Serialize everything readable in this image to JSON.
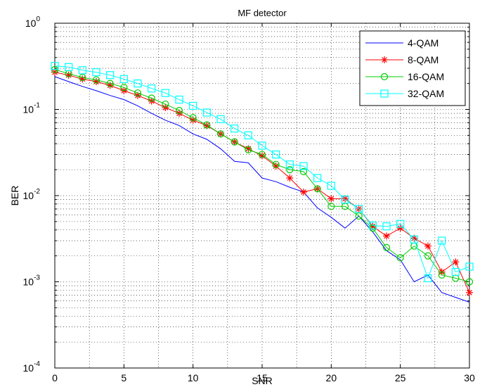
{
  "chart_data": {
    "type": "line",
    "title": "MF detector",
    "xlabel": "SNR",
    "ylabel": "BER",
    "xlim": [
      0,
      30
    ],
    "ylim": [
      0.0001,
      1
    ],
    "yscale": "log",
    "grid": true,
    "legend_position": "top-right",
    "x_ticks": [
      "0",
      "5",
      "10",
      "15",
      "20",
      "25",
      "30"
    ],
    "y_ticks": [
      {
        "base": "10",
        "exp": "-4",
        "value": 0.0001
      },
      {
        "base": "10",
        "exp": "-3",
        "value": 0.001
      },
      {
        "base": "10",
        "exp": "-2",
        "value": 0.01
      },
      {
        "base": "10",
        "exp": "-1",
        "value": 0.1
      },
      {
        "base": "10",
        "exp": "0",
        "value": 1
      }
    ],
    "x": [
      0,
      1,
      2,
      3,
      4,
      5,
      6,
      7,
      8,
      9,
      10,
      11,
      12,
      13,
      14,
      15,
      16,
      17,
      18,
      19,
      20,
      21,
      22,
      23,
      24,
      25,
      26,
      27,
      28,
      29,
      30
    ],
    "series": [
      {
        "name": "4-QAM",
        "color": "#0000ff",
        "marker": "none",
        "values": [
          0.24,
          0.21,
          0.185,
          0.165,
          0.145,
          0.13,
          0.11,
          0.09,
          0.075,
          0.065,
          0.052,
          0.045,
          0.035,
          0.025,
          0.024,
          0.016,
          0.0145,
          0.0125,
          0.011,
          0.0072,
          0.0056,
          0.0042,
          0.0058,
          0.0038,
          0.0023,
          0.0018,
          0.001,
          0.0012,
          0.00075,
          0.00066,
          0.00058
        ]
      },
      {
        "name": "8-QAM",
        "color": "#ff0000",
        "marker": "star",
        "values": [
          0.27,
          0.25,
          0.225,
          0.21,
          0.19,
          0.165,
          0.145,
          0.125,
          0.105,
          0.09,
          0.075,
          0.065,
          0.052,
          0.042,
          0.035,
          0.029,
          0.022,
          0.016,
          0.011,
          0.012,
          0.0092,
          0.0092,
          0.007,
          0.0044,
          0.0034,
          0.0042,
          0.0032,
          0.0026,
          0.0013,
          0.0017,
          0.00075
        ]
      },
      {
        "name": "16-QAM",
        "color": "#00cc00",
        "marker": "circle",
        "values": [
          0.29,
          0.26,
          0.235,
          0.22,
          0.2,
          0.18,
          0.155,
          0.135,
          0.115,
          0.097,
          0.08,
          0.066,
          0.052,
          0.042,
          0.034,
          0.03,
          0.023,
          0.02,
          0.019,
          0.012,
          0.0075,
          0.0075,
          0.0058,
          0.0042,
          0.0025,
          0.0019,
          0.0026,
          0.002,
          0.0012,
          0.0011,
          0.001
        ]
      },
      {
        "name": "32-QAM",
        "color": "#00ffff",
        "marker": "square",
        "values": [
          0.32,
          0.31,
          0.285,
          0.27,
          0.25,
          0.225,
          0.2,
          0.175,
          0.155,
          0.13,
          0.11,
          0.092,
          0.077,
          0.06,
          0.05,
          0.038,
          0.03,
          0.023,
          0.022,
          0.016,
          0.013,
          0.009,
          0.007,
          0.0045,
          0.0044,
          0.0047,
          0.0031,
          0.0011,
          0.003,
          0.0013,
          0.0015
        ]
      }
    ]
  }
}
